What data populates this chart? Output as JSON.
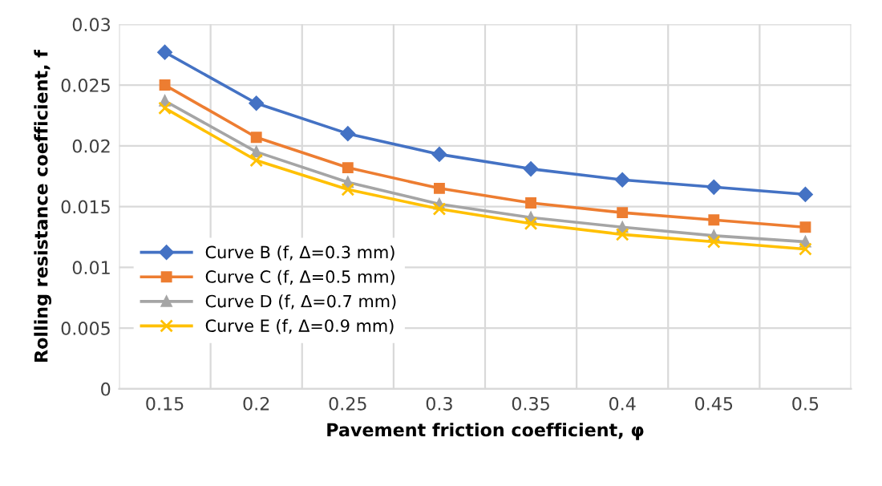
{
  "chart_data": {
    "type": "line",
    "xlabel": "Pavement friction coefficient, φ",
    "ylabel": "Rolling resistance coefficient, f",
    "categories": [
      "0.15",
      "0.2",
      "0.25",
      "0.3",
      "0.35",
      "0.4",
      "0.45",
      "0.5"
    ],
    "series": [
      {
        "name": "Curve B (f, Δ=0.3 mm)",
        "color": "#4472c4",
        "marker": "diamond",
        "values": [
          0.0277,
          0.0235,
          0.021,
          0.0193,
          0.0181,
          0.0172,
          0.0166,
          0.016
        ]
      },
      {
        "name": "Curve C (f, Δ=0.5 mm)",
        "color": "#ed7d31",
        "marker": "square",
        "values": [
          0.025,
          0.0207,
          0.0182,
          0.0165,
          0.0153,
          0.0145,
          0.0139,
          0.0133
        ]
      },
      {
        "name": "Curve D (f, Δ=0.7 mm)",
        "color": "#a5a5a5",
        "marker": "triangle",
        "values": [
          0.0237,
          0.0195,
          0.017,
          0.0152,
          0.0141,
          0.0133,
          0.0126,
          0.0121
        ]
      },
      {
        "name": "Curve E (f, Δ=0.9 mm)",
        "color": "#ffc000",
        "marker": "cross",
        "values": [
          0.0231,
          0.0188,
          0.0164,
          0.0148,
          0.0136,
          0.0127,
          0.0121,
          0.0115
        ]
      }
    ],
    "ylim": [
      0,
      0.03
    ],
    "yticks": [
      0,
      0.005,
      0.01,
      0.015,
      0.02,
      0.025,
      0.03
    ],
    "grid": true,
    "legend": "left",
    "line_style": "solid"
  }
}
